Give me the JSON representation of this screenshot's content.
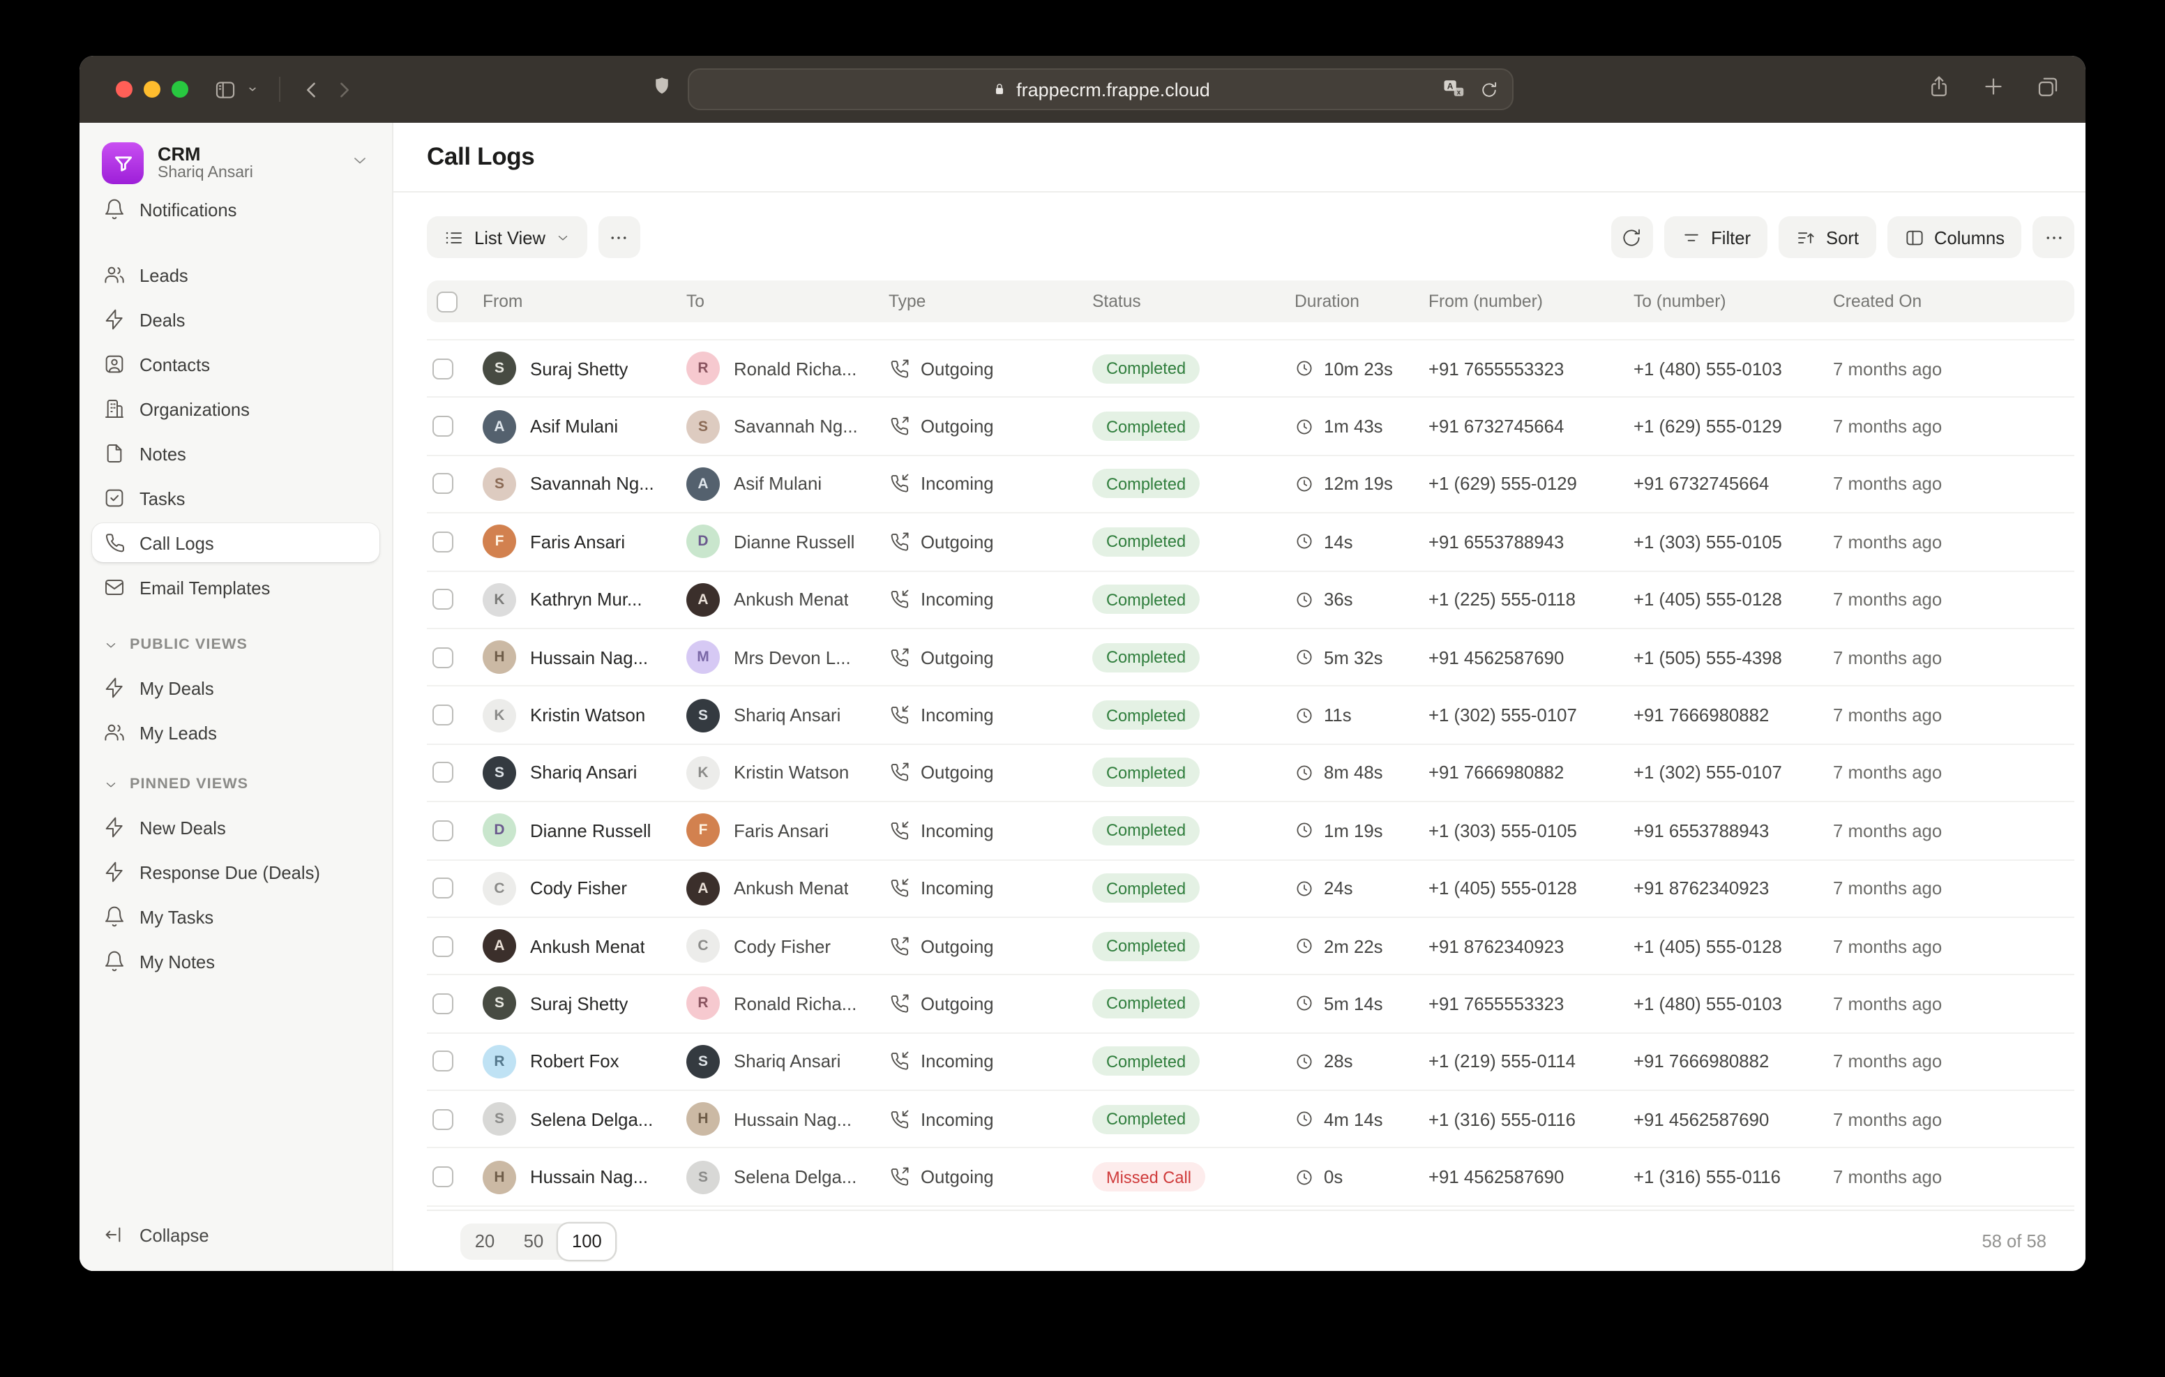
{
  "browser": {
    "url": "frappecrm.frappe.cloud",
    "traffic_lights": [
      "#ff5f57",
      "#febc2e",
      "#28c840"
    ]
  },
  "sidebar": {
    "app_name": "CRM",
    "user_name": "Shariq Ansari",
    "items": [
      {
        "label": "Notifications",
        "icon": "bell-icon",
        "active": false
      },
      {
        "label": "Leads",
        "icon": "users-icon",
        "active": false
      },
      {
        "label": "Deals",
        "icon": "zap-icon",
        "active": false
      },
      {
        "label": "Contacts",
        "icon": "contact-icon",
        "active": false
      },
      {
        "label": "Organizations",
        "icon": "building-icon",
        "active": false
      },
      {
        "label": "Notes",
        "icon": "file-icon",
        "active": false
      },
      {
        "label": "Tasks",
        "icon": "check-square-icon",
        "active": false
      },
      {
        "label": "Call Logs",
        "icon": "phone-icon",
        "active": true
      },
      {
        "label": "Email Templates",
        "icon": "mail-icon",
        "active": false
      }
    ],
    "sections": [
      {
        "label": "PUBLIC VIEWS",
        "items": [
          {
            "label": "My Deals",
            "icon": "zap-icon"
          },
          {
            "label": "My Leads",
            "icon": "users-icon"
          }
        ]
      },
      {
        "label": "PINNED VIEWS",
        "items": [
          {
            "label": "New Deals",
            "icon": "zap-icon"
          },
          {
            "label": "Response Due (Deals)",
            "icon": "zap-icon"
          },
          {
            "label": "My Tasks",
            "icon": "bell-icon"
          },
          {
            "label": "My Notes",
            "icon": "bell-icon"
          }
        ]
      }
    ],
    "collapse_label": "Collapse"
  },
  "header": {
    "title": "Call Logs"
  },
  "toolbar": {
    "view_label": "List View",
    "filter_label": "Filter",
    "sort_label": "Sort",
    "columns_label": "Columns"
  },
  "table": {
    "columns": [
      "From",
      "To",
      "Type",
      "Status",
      "Duration",
      "From (number)",
      "To (number)",
      "Created On"
    ],
    "rows": [
      {
        "from": {
          "name": "Suraj Shetty",
          "initial": "S",
          "bg": "#474b42",
          "fg": "#e9e9e2"
        },
        "to": {
          "name": "Ronald Richa...",
          "initial": "R",
          "bg": "#f6c9cf",
          "fg": "#8a5560"
        },
        "type": "Outgoing",
        "status": "Completed",
        "duration": "10m 23s",
        "from_number": "+91 7655553323",
        "to_number": "+1 (480) 555-0103",
        "created": "7 months ago"
      },
      {
        "from": {
          "name": "Asif Mulani",
          "initial": "A",
          "bg": "#54616e",
          "fg": "#dfe6ec"
        },
        "to": {
          "name": "Savannah Ng...",
          "initial": "S",
          "bg": "#ddcbc0",
          "fg": "#8a6a55"
        },
        "type": "Outgoing",
        "status": "Completed",
        "duration": "1m 43s",
        "from_number": "+91 6732745664",
        "to_number": "+1 (629) 555-0129",
        "created": "7 months ago"
      },
      {
        "from": {
          "name": "Savannah Ng...",
          "initial": "S",
          "bg": "#ddcbc0",
          "fg": "#8a6a55"
        },
        "to": {
          "name": "Asif Mulani",
          "initial": "A",
          "bg": "#54616e",
          "fg": "#dfe6ec"
        },
        "type": "Incoming",
        "status": "Completed",
        "duration": "12m 19s",
        "from_number": "+1 (629) 555-0129",
        "to_number": "+91 6732745664",
        "created": "7 months ago"
      },
      {
        "from": {
          "name": "Faris Ansari",
          "initial": "F",
          "bg": "#d2814f",
          "fg": "#fff3e2"
        },
        "to": {
          "name": "Dianne Russell",
          "initial": "D",
          "bg": "#c9e6cd",
          "fg": "#6b5a8e"
        },
        "type": "Outgoing",
        "status": "Completed",
        "duration": "14s",
        "from_number": "+91 6553788943",
        "to_number": "+1 (303) 555-0105",
        "created": "7 months ago"
      },
      {
        "from": {
          "name": "Kathryn Mur...",
          "initial": "K",
          "bg": "#dcdcdc",
          "fg": "#7a7a78"
        },
        "to": {
          "name": "Ankush Menat",
          "initial": "A",
          "bg": "#3b2f2b",
          "fg": "#e9dfd6"
        },
        "type": "Incoming",
        "status": "Completed",
        "duration": "36s",
        "from_number": "+1 (225) 555-0118",
        "to_number": "+1 (405) 555-0128",
        "created": "7 months ago"
      },
      {
        "from": {
          "name": "Hussain Nag...",
          "initial": "H",
          "bg": "#cbb9a4",
          "fg": "#6e5c48"
        },
        "to": {
          "name": "Mrs Devon L...",
          "initial": "M",
          "bg": "#d6c9f4",
          "fg": "#7a68a6"
        },
        "type": "Outgoing",
        "status": "Completed",
        "duration": "5m 32s",
        "from_number": "+91 4562587690",
        "to_number": "+1 (505) 555-4398",
        "created": "7 months ago"
      },
      {
        "from": {
          "name": "Kristin Watson",
          "initial": "K",
          "bg": "#ececea",
          "fg": "#8a8a88"
        },
        "to": {
          "name": "Shariq Ansari",
          "initial": "S",
          "bg": "#343a40",
          "fg": "#dfe4e8"
        },
        "type": "Incoming",
        "status": "Completed",
        "duration": "11s",
        "from_number": "+1 (302) 555-0107",
        "to_number": "+91 7666980882",
        "created": "7 months ago"
      },
      {
        "from": {
          "name": "Shariq Ansari",
          "initial": "S",
          "bg": "#343a40",
          "fg": "#dfe4e8"
        },
        "to": {
          "name": "Kristin Watson",
          "initial": "K",
          "bg": "#ececea",
          "fg": "#8a8a88"
        },
        "type": "Outgoing",
        "status": "Completed",
        "duration": "8m 48s",
        "from_number": "+91 7666980882",
        "to_number": "+1 (302) 555-0107",
        "created": "7 months ago"
      },
      {
        "from": {
          "name": "Dianne Russell",
          "initial": "D",
          "bg": "#c9e6cd",
          "fg": "#6b5a8e"
        },
        "to": {
          "name": "Faris Ansari",
          "initial": "F",
          "bg": "#d2814f",
          "fg": "#fff3e2"
        },
        "type": "Incoming",
        "status": "Completed",
        "duration": "1m 19s",
        "from_number": "+1 (303) 555-0105",
        "to_number": "+91 6553788943",
        "created": "7 months ago"
      },
      {
        "from": {
          "name": "Cody Fisher",
          "initial": "C",
          "bg": "#ececea",
          "fg": "#8a8a88"
        },
        "to": {
          "name": "Ankush Menat",
          "initial": "A",
          "bg": "#3b2f2b",
          "fg": "#e9dfd6"
        },
        "type": "Incoming",
        "status": "Completed",
        "duration": "24s",
        "from_number": "+1 (405) 555-0128",
        "to_number": "+91 8762340923",
        "created": "7 months ago"
      },
      {
        "from": {
          "name": "Ankush Menat",
          "initial": "A",
          "bg": "#3b2f2b",
          "fg": "#e9dfd6"
        },
        "to": {
          "name": "Cody Fisher",
          "initial": "C",
          "bg": "#ececea",
          "fg": "#8a8a88"
        },
        "type": "Outgoing",
        "status": "Completed",
        "duration": "2m 22s",
        "from_number": "+91 8762340923",
        "to_number": "+1 (405) 555-0128",
        "created": "7 months ago"
      },
      {
        "from": {
          "name": "Suraj Shetty",
          "initial": "S",
          "bg": "#474b42",
          "fg": "#e9e9e2"
        },
        "to": {
          "name": "Ronald Richa...",
          "initial": "R",
          "bg": "#f6c9cf",
          "fg": "#8a5560"
        },
        "type": "Outgoing",
        "status": "Completed",
        "duration": "5m 14s",
        "from_number": "+91 7655553323",
        "to_number": "+1 (480) 555-0103",
        "created": "7 months ago"
      },
      {
        "from": {
          "name": "Robert Fox",
          "initial": "R",
          "bg": "#bfe2f4",
          "fg": "#54788c"
        },
        "to": {
          "name": "Shariq Ansari",
          "initial": "S",
          "bg": "#343a40",
          "fg": "#dfe4e8"
        },
        "type": "Incoming",
        "status": "Completed",
        "duration": "28s",
        "from_number": "+1 (219) 555-0114",
        "to_number": "+91 7666980882",
        "created": "7 months ago"
      },
      {
        "from": {
          "name": "Selena Delga...",
          "initial": "S",
          "bg": "#d8d8d6",
          "fg": "#8a8a88"
        },
        "to": {
          "name": "Hussain Nag...",
          "initial": "H",
          "bg": "#cbb9a4",
          "fg": "#6e5c48"
        },
        "type": "Incoming",
        "status": "Completed",
        "duration": "4m 14s",
        "from_number": "+1 (316) 555-0116",
        "to_number": "+91 4562587690",
        "created": "7 months ago"
      },
      {
        "from": {
          "name": "Hussain Nag...",
          "initial": "H",
          "bg": "#cbb9a4",
          "fg": "#6e5c48"
        },
        "to": {
          "name": "Selena Delga...",
          "initial": "S",
          "bg": "#d8d8d6",
          "fg": "#8a8a88"
        },
        "type": "Outgoing",
        "status": "Missed Call",
        "duration": "0s",
        "from_number": "+91 4562587690",
        "to_number": "+1 (316) 555-0116",
        "created": "7 months ago"
      }
    ]
  },
  "footer": {
    "page_sizes": [
      "20",
      "50",
      "100"
    ],
    "selected_page_size": "100",
    "count_label": "58 of 58"
  },
  "colors": {
    "accent": "#a53be8",
    "status": {
      "Completed": {
        "bg": "#e4f1e4",
        "fg": "#2e7d3b"
      },
      "Missed Call": {
        "bg": "#fdecec",
        "fg": "#cf3a3a"
      }
    }
  }
}
